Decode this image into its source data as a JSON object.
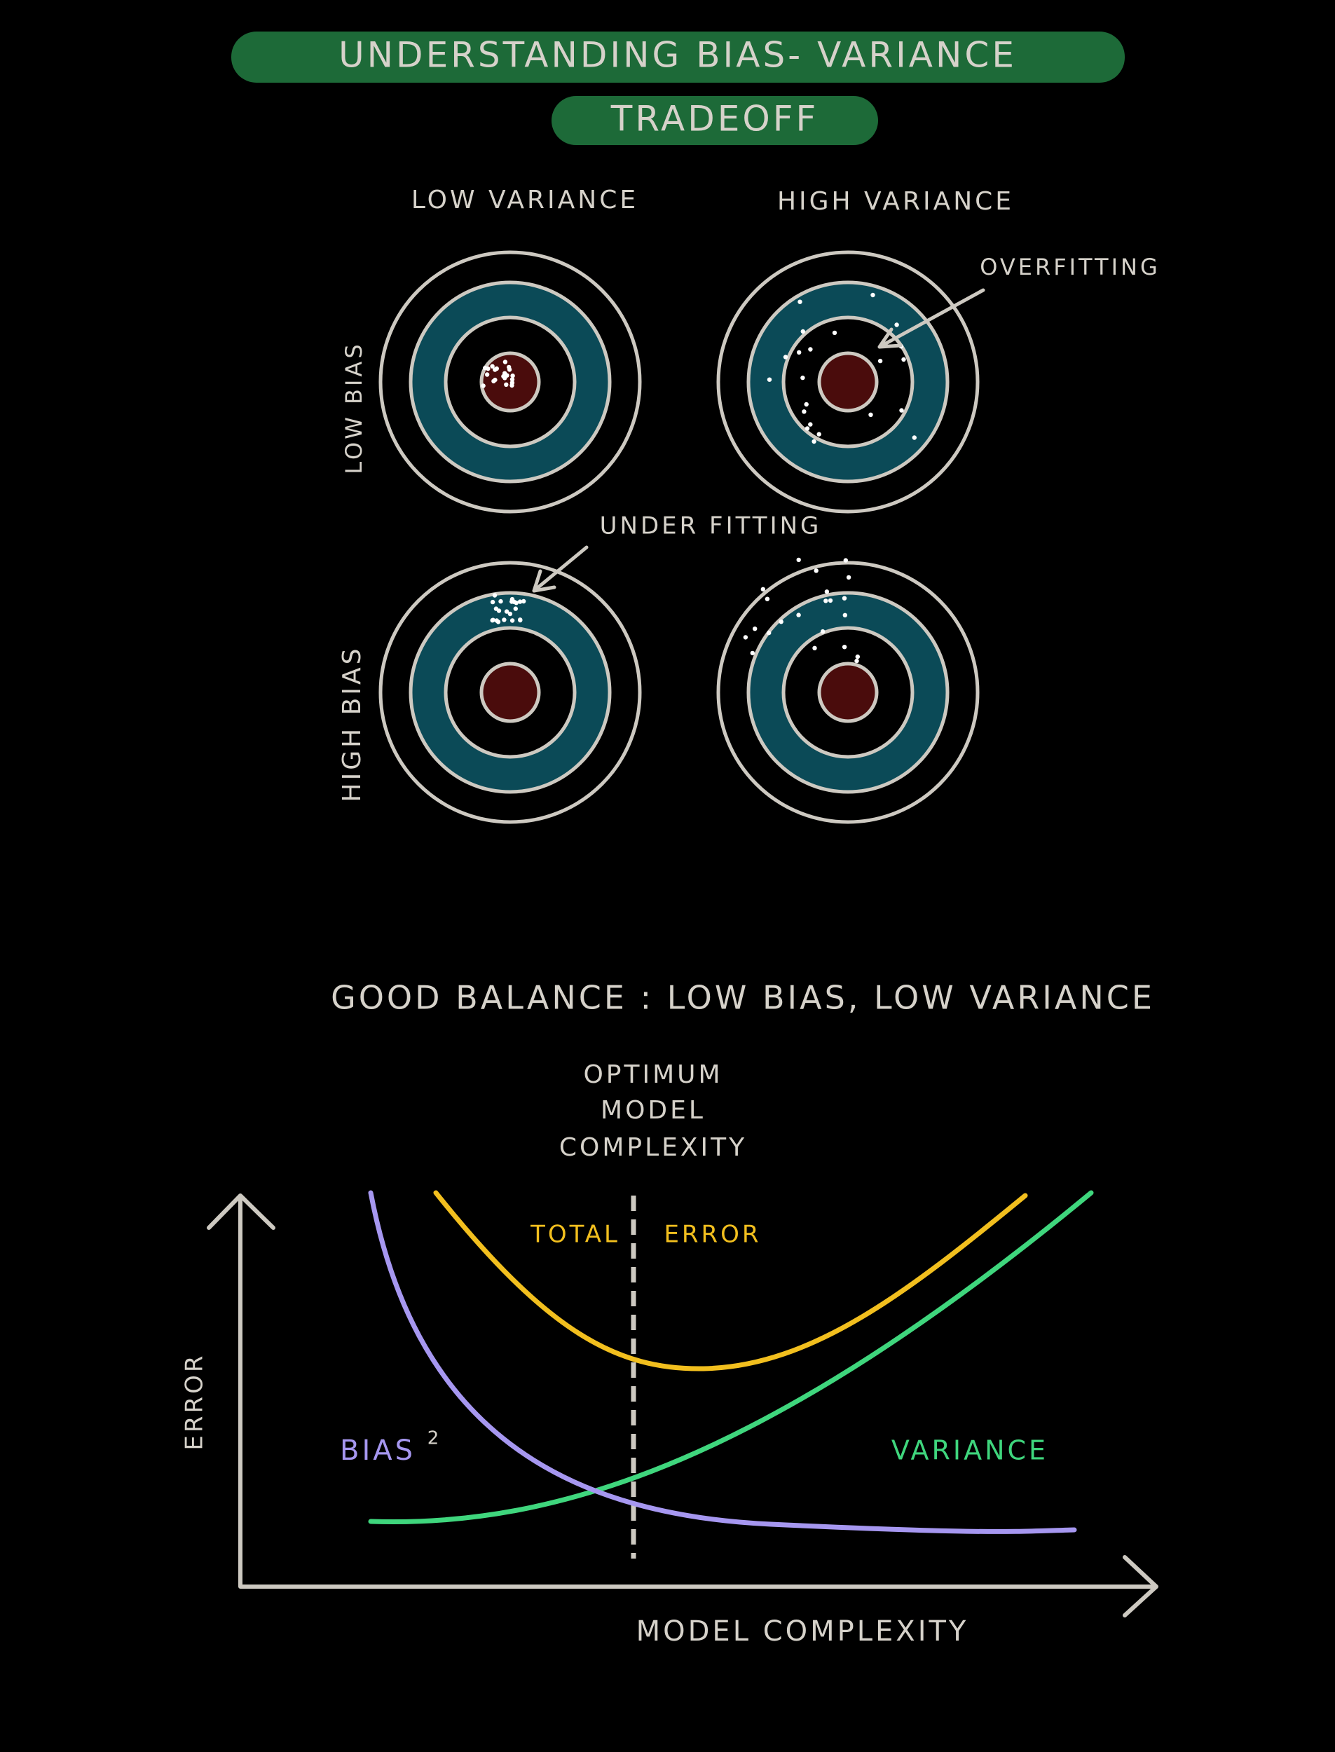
{
  "header": {
    "title_line1": "UNDERSTANDING  BIAS- VARIANCE",
    "title_line2": "TRADEOFF"
  },
  "targets": {
    "column_labels": [
      "LOW VARIANCE",
      "HIGH VARIANCE"
    ],
    "row_labels": [
      "LOW BIAS",
      "HIGH BIAS"
    ],
    "annotations": {
      "overfitting": "OVERFITTING",
      "underfitting": "UNDER FITTING"
    }
  },
  "balance_note": "GOOD BALANCE : LOW BIAS, LOW VARIANCE",
  "graph": {
    "optimum_label": [
      "OPTIMUM",
      "MODEL",
      "COMPLEXITY"
    ],
    "total_label": "TOTAL",
    "error_label": "ERROR",
    "bias_label": "BIAS",
    "bias_exponent": "2",
    "variance_label": "VARIANCE",
    "y_axis_label": "ERROR",
    "x_axis_label": "MODEL  COMPLEXITY"
  }
}
